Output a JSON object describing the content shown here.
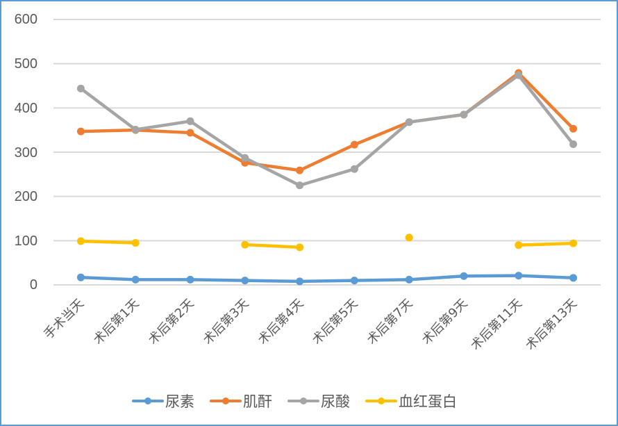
{
  "chart_data": {
    "type": "line",
    "title": "",
    "xlabel": "",
    "ylabel": "",
    "ylim": [
      0,
      600
    ],
    "yticks": [
      0,
      100,
      200,
      300,
      400,
      500,
      600
    ],
    "grid": true,
    "legend_position": "bottom",
    "categories": [
      "手术当天",
      "术后第1天",
      "术后第2天",
      "术后第3天",
      "术后第4天",
      "术后第5天",
      "术后第7天",
      "术后第9天",
      "术后第11天",
      "术后第13天"
    ],
    "series": [
      {
        "name": "尿素",
        "color": "#5b9bd5",
        "values": [
          17,
          12,
          12,
          10,
          8,
          10,
          12,
          20,
          21,
          16
        ]
      },
      {
        "name": "肌酐",
        "color": "#ed7d31",
        "values": [
          347,
          350,
          344,
          276,
          259,
          317,
          368,
          385,
          479,
          353
        ]
      },
      {
        "name": "尿酸",
        "color": "#a5a5a5",
        "values": [
          444,
          351,
          370,
          287,
          225,
          262,
          368,
          385,
          474,
          318
        ]
      },
      {
        "name": "血红蛋白",
        "color": "#ffc000",
        "values": [
          99,
          95,
          null,
          91,
          85,
          null,
          107,
          null,
          90,
          94
        ]
      }
    ]
  },
  "axis": {
    "y_labels": [
      "600",
      "500",
      "400",
      "300",
      "200",
      "100",
      "0"
    ]
  },
  "legend": {
    "items": [
      {
        "label": "尿素",
        "color": "#5b9bd5"
      },
      {
        "label": "肌酐",
        "color": "#ed7d31"
      },
      {
        "label": "尿酸",
        "color": "#a5a5a5"
      },
      {
        "label": "血红蛋白",
        "color": "#ffc000"
      }
    ]
  },
  "colors": {
    "border": "#5b9bd5",
    "grid": "#d9d9d9",
    "text": "#595959"
  }
}
